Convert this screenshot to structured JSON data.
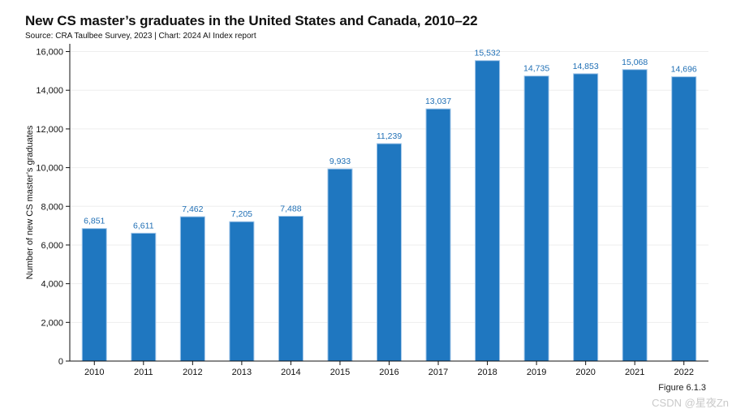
{
  "header": {
    "title": "New CS master’s graduates in the United States and Canada, 2010–22",
    "source": "Source: CRA Taulbee Survey, 2023 | Chart: 2024 AI Index report"
  },
  "footer": {
    "figure_label": "Figure 6.1.3",
    "watermark": "CSDN @星夜Zn"
  },
  "colors": {
    "bar": "#1f77c0",
    "bar_edge": "#9fc5e8",
    "label": "#1f6fb5",
    "grid": "#eeeeee"
  },
  "chart_data": {
    "type": "bar",
    "title": "New CS master’s graduates in the United States and Canada, 2010–22",
    "xlabel": "",
    "ylabel": "Number of new CS master’s graduates",
    "categories": [
      "2010",
      "2011",
      "2012",
      "2013",
      "2014",
      "2015",
      "2016",
      "2017",
      "2018",
      "2019",
      "2020",
      "2021",
      "2022"
    ],
    "values": [
      6851,
      6611,
      7462,
      7205,
      7488,
      9933,
      11239,
      13037,
      15532,
      14735,
      14853,
      15068,
      14696
    ],
    "value_labels": [
      "6,851",
      "6,611",
      "7,462",
      "7,205",
      "7,488",
      "9,933",
      "11,239",
      "13,037",
      "15,532",
      "14,735",
      "14,853",
      "15,068",
      "14,696"
    ],
    "yticks": [
      0,
      2000,
      4000,
      6000,
      8000,
      10000,
      12000,
      14000,
      16000
    ],
    "ytick_labels": [
      "0",
      "2,000",
      "4,000",
      "6,000",
      "8,000",
      "10,000",
      "12,000",
      "14,000",
      "16,000"
    ],
    "ylim": [
      0,
      16400
    ],
    "grid": true
  }
}
